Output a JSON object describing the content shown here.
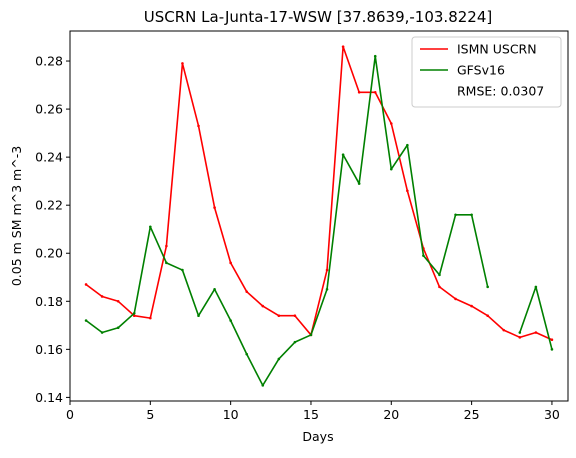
{
  "chart_data": {
    "type": "line",
    "title": "USCRN La-Junta-17-WSW [37.8639,-103.8224]",
    "xlabel": "Days",
    "ylabel": "0.05 m SM m^3 m^-3",
    "xlim": [
      0,
      31
    ],
    "ylim": [
      0.1385,
      0.2925
    ],
    "x_ticks": [
      0,
      5,
      10,
      15,
      20,
      25,
      30
    ],
    "x_tick_labels": [
      "0",
      "5",
      "10",
      "15",
      "20",
      "25",
      "30"
    ],
    "y_ticks": [
      0.14,
      0.16,
      0.18,
      0.2,
      0.22,
      0.24,
      0.26,
      0.28
    ],
    "y_tick_labels": [
      "0.14",
      "0.16",
      "0.18",
      "0.20",
      "0.22",
      "0.24",
      "0.26",
      "0.28"
    ],
    "grid": false,
    "legend_position": "top-right",
    "annotation": "RMSE: 0.0307",
    "series": [
      {
        "name": "ISMN USCRN",
        "color": "#ff0000",
        "x": [
          1,
          2,
          3,
          4,
          5,
          6,
          7,
          8,
          9,
          10,
          11,
          12,
          13,
          14,
          15,
          16,
          17,
          18,
          19,
          20,
          21,
          22,
          23,
          24,
          25,
          26,
          27,
          28,
          29,
          30
        ],
        "values": [
          0.187,
          0.182,
          0.18,
          0.174,
          0.173,
          0.203,
          0.279,
          0.253,
          0.219,
          0.196,
          0.184,
          0.178,
          0.174,
          0.174,
          0.166,
          0.193,
          0.286,
          0.267,
          0.267,
          0.254,
          0.226,
          0.202,
          0.186,
          0.181,
          0.178,
          0.174,
          0.168,
          0.165,
          0.167,
          0.164
        ]
      },
      {
        "name": "GFSv16",
        "color": "#008000",
        "x": [
          1,
          2,
          3,
          4,
          5,
          6,
          7,
          8,
          9,
          10,
          11,
          12,
          13,
          14,
          15,
          16,
          17,
          18,
          19,
          20,
          21,
          22,
          23,
          24,
          25,
          26,
          27,
          28,
          29,
          30
        ],
        "values": [
          0.172,
          0.167,
          0.169,
          0.175,
          0.211,
          0.196,
          0.193,
          0.174,
          0.185,
          0.172,
          0.158,
          0.145,
          0.156,
          0.163,
          0.166,
          0.185,
          0.241,
          0.229,
          0.282,
          0.235,
          0.245,
          0.199,
          0.191,
          0.216,
          0.216,
          0.186,
          null,
          0.167,
          0.186,
          0.16
        ]
      }
    ]
  }
}
